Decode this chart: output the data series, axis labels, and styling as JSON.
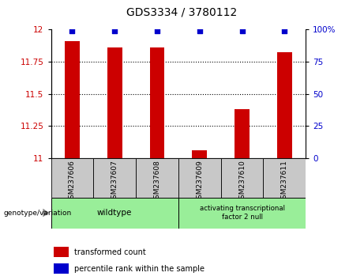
{
  "title": "GDS3334 / 3780112",
  "samples": [
    "GSM237606",
    "GSM237607",
    "GSM237608",
    "GSM237609",
    "GSM237610",
    "GSM237611"
  ],
  "transformed_counts": [
    11.91,
    11.86,
    11.86,
    11.06,
    11.38,
    11.82
  ],
  "percentile_ranks": [
    99,
    99,
    99,
    99,
    99,
    99
  ],
  "ylim_left": [
    11,
    12
  ],
  "ylim_right": [
    0,
    100
  ],
  "yticks_left": [
    11,
    11.25,
    11.5,
    11.75,
    12
  ],
  "yticks_right": [
    0,
    25,
    50,
    75,
    100
  ],
  "ytick_labels_left": [
    "11",
    "11.25",
    "11.5",
    "11.75",
    "12"
  ],
  "ytick_labels_right": [
    "0",
    "25",
    "50",
    "75",
    "100%"
  ],
  "bar_color": "#cc0000",
  "scatter_color": "#0000cc",
  "group1_label": "wildtype",
  "group2_label": "activating transcriptional\nfactor 2 null",
  "group1_indices": [
    0,
    1,
    2
  ],
  "group2_indices": [
    3,
    4,
    5
  ],
  "group_bg": "#99ee99",
  "legend_red_label": "transformed count",
  "legend_blue_label": "percentile rank within the sample",
  "genotype_label": "genotype/variation",
  "bar_width": 0.35,
  "title_fontsize": 10
}
